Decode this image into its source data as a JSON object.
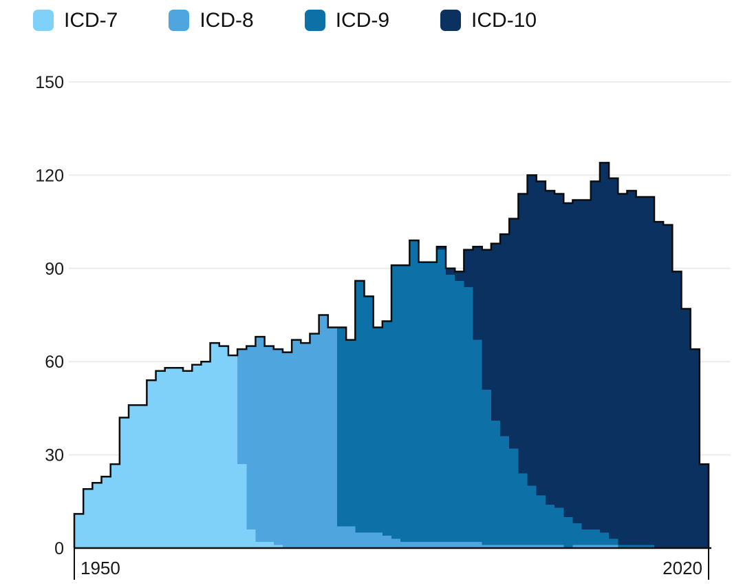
{
  "legend": {
    "items": [
      {
        "label": "ICD-7",
        "color": "#7fd1f9"
      },
      {
        "label": "ICD-8",
        "color": "#4fa6df"
      },
      {
        "label": "ICD-9",
        "color": "#0d71a7"
      },
      {
        "label": "ICD-10",
        "color": "#0b3161"
      }
    ]
  },
  "chart_data": {
    "type": "area",
    "variant": "stacked-step-area",
    "title": "",
    "xlabel": "",
    "ylabel": "",
    "start_year": 1950,
    "end_year": 2019,
    "ylim": [
      0,
      150
    ],
    "yticks": [
      0,
      30,
      60,
      90,
      120,
      150
    ],
    "xticks": [
      1950,
      2020
    ],
    "grid": "horizontal",
    "legend_position": "top-left",
    "outline_color": "#0d0d0d",
    "gridline_color": "#ececec",
    "axis_color": "#0d0d0d",
    "series": [
      {
        "name": "ICD-7",
        "color": "#7fd1f9",
        "values": [
          11,
          19,
          21,
          23,
          27,
          42,
          46,
          46,
          54,
          57,
          58,
          58,
          57,
          59,
          60,
          66,
          65,
          62,
          27,
          6,
          2,
          2,
          1,
          0,
          0,
          0,
          0,
          0,
          0,
          0,
          0,
          0,
          0,
          0,
          0,
          0,
          0,
          0,
          0,
          0,
          0,
          0,
          0,
          0,
          0,
          0,
          0,
          0,
          0,
          0,
          0,
          0,
          0,
          0,
          0,
          0,
          0,
          0,
          0,
          0,
          0,
          0,
          0,
          0,
          0,
          0,
          0,
          0,
          0,
          0
        ]
      },
      {
        "name": "ICD-8",
        "color": "#4fa6df",
        "values": [
          0,
          0,
          0,
          0,
          0,
          0,
          0,
          0,
          0,
          0,
          0,
          0,
          0,
          0,
          0,
          0,
          0,
          0,
          37,
          59,
          66,
          63,
          63,
          63,
          67,
          66,
          69,
          75,
          71,
          7,
          7,
          5,
          5,
          5,
          4,
          3,
          2,
          2,
          2,
          2,
          2,
          2,
          2,
          2,
          2,
          1,
          1,
          1,
          1,
          1,
          1,
          1,
          1,
          1,
          0,
          1,
          1,
          1,
          1,
          1,
          0,
          0,
          0,
          0,
          0,
          0,
          0,
          0,
          0,
          0
        ]
      },
      {
        "name": "ICD-9",
        "color": "#0d71a7",
        "values": [
          0,
          0,
          0,
          0,
          0,
          0,
          0,
          0,
          0,
          0,
          0,
          0,
          0,
          0,
          0,
          0,
          0,
          0,
          0,
          0,
          0,
          0,
          0,
          0,
          0,
          0,
          0,
          0,
          0,
          64,
          60,
          81,
          76,
          66,
          69,
          88,
          89,
          97,
          90,
          90,
          94,
          86,
          84,
          82,
          65,
          50,
          40,
          35,
          31,
          23,
          19,
          16,
          13,
          12,
          10,
          7,
          5,
          5,
          4,
          2,
          1,
          1,
          1,
          1,
          0,
          0,
          0,
          0,
          0,
          0
        ]
      },
      {
        "name": "ICD-10",
        "color": "#0b3161",
        "values": [
          0,
          0,
          0,
          0,
          0,
          0,
          0,
          0,
          0,
          0,
          0,
          0,
          0,
          0,
          0,
          0,
          0,
          0,
          0,
          0,
          0,
          0,
          0,
          0,
          0,
          0,
          0,
          0,
          0,
          0,
          0,
          0,
          0,
          0,
          0,
          0,
          0,
          0,
          0,
          0,
          1,
          2,
          3,
          12,
          30,
          45,
          57,
          65,
          74,
          90,
          100,
          101,
          101,
          101,
          101,
          104,
          106,
          112,
          119,
          116,
          113,
          114,
          112,
          112,
          105,
          104,
          89,
          77,
          64,
          27
        ]
      }
    ]
  }
}
